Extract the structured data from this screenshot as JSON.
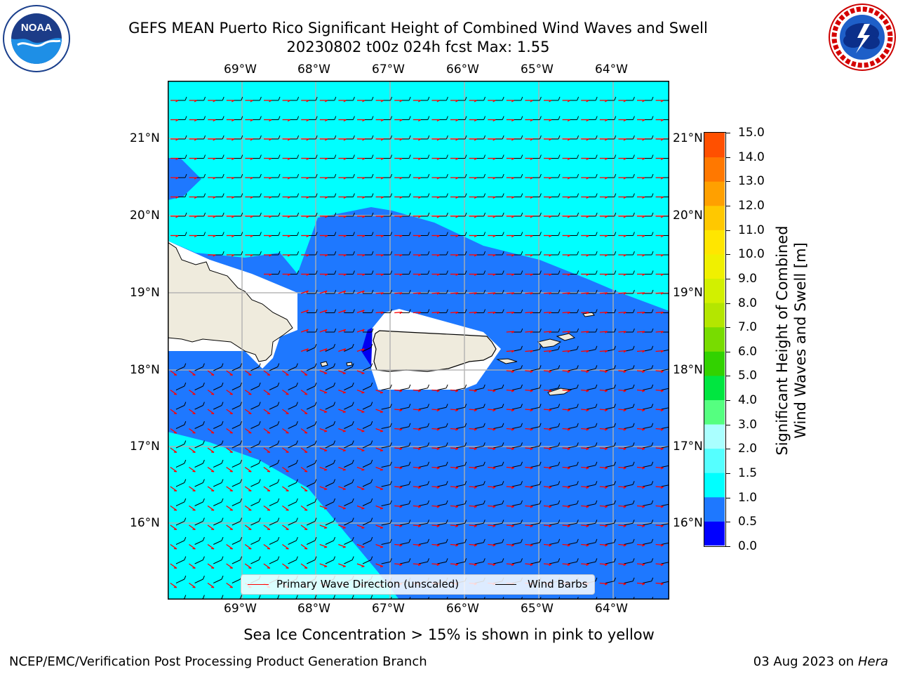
{
  "title": {
    "line1": "GEFS MEAN Puerto Rico Significant Height of Combined Wind Waves and Swell",
    "line2": "20230802 t00z 024h fcst   Max: 1.55"
  },
  "logos": {
    "left": "NOAA",
    "right": "National Weather Service"
  },
  "map": {
    "lon_labels": [
      "69°W",
      "68°W",
      "67°W",
      "66°W",
      "65°W",
      "64°W"
    ],
    "lat_labels": [
      "21°N",
      "20°N",
      "19°N",
      "18°N",
      "17°N",
      "16°N"
    ],
    "ocean_colors": {
      "band_0_0p5": "#0000f0",
      "band_0p5_1": "#1e78ff",
      "band_1_1p5": "#00ffff"
    },
    "land_color": "#efebdd"
  },
  "legend": {
    "wave_direction": "Primary Wave Direction (unscaled)",
    "wind_barbs": "Wind Barbs",
    "wave_color": "#ff0000",
    "barb_color": "#000000"
  },
  "colorbar": {
    "label_line1": "Significant Height of Combined",
    "label_line2": "Wind Waves and Swell [m]",
    "ticks": [
      "15.0",
      "14.0",
      "13.0",
      "12.0",
      "11.0",
      "10.0",
      "9.0",
      "8.0",
      "7.0",
      "6.0",
      "5.0",
      "4.0",
      "3.0",
      "2.0",
      "1.5",
      "1.0",
      "0.5",
      "0.0"
    ],
    "colors": [
      "#0000ff",
      "#1e78ff",
      "#00ffff",
      "#55ffff",
      "#aaffff",
      "#55ff80",
      "#00e640",
      "#32d200",
      "#78dc00",
      "#b4e600",
      "#d2f000",
      "#f0f000",
      "#ffe600",
      "#ffc800",
      "#ffa000",
      "#ff7800",
      "#ff5000",
      "#ff2800",
      "#ff0000"
    ]
  },
  "note": "Sea Ice Concentration > 15% is shown in pink to yellow",
  "footer": {
    "left": "NCEP/EMC/Verification Post Processing Product Generation Branch",
    "right_date": "03 Aug 2023 on",
    "right_host": "Hera"
  }
}
